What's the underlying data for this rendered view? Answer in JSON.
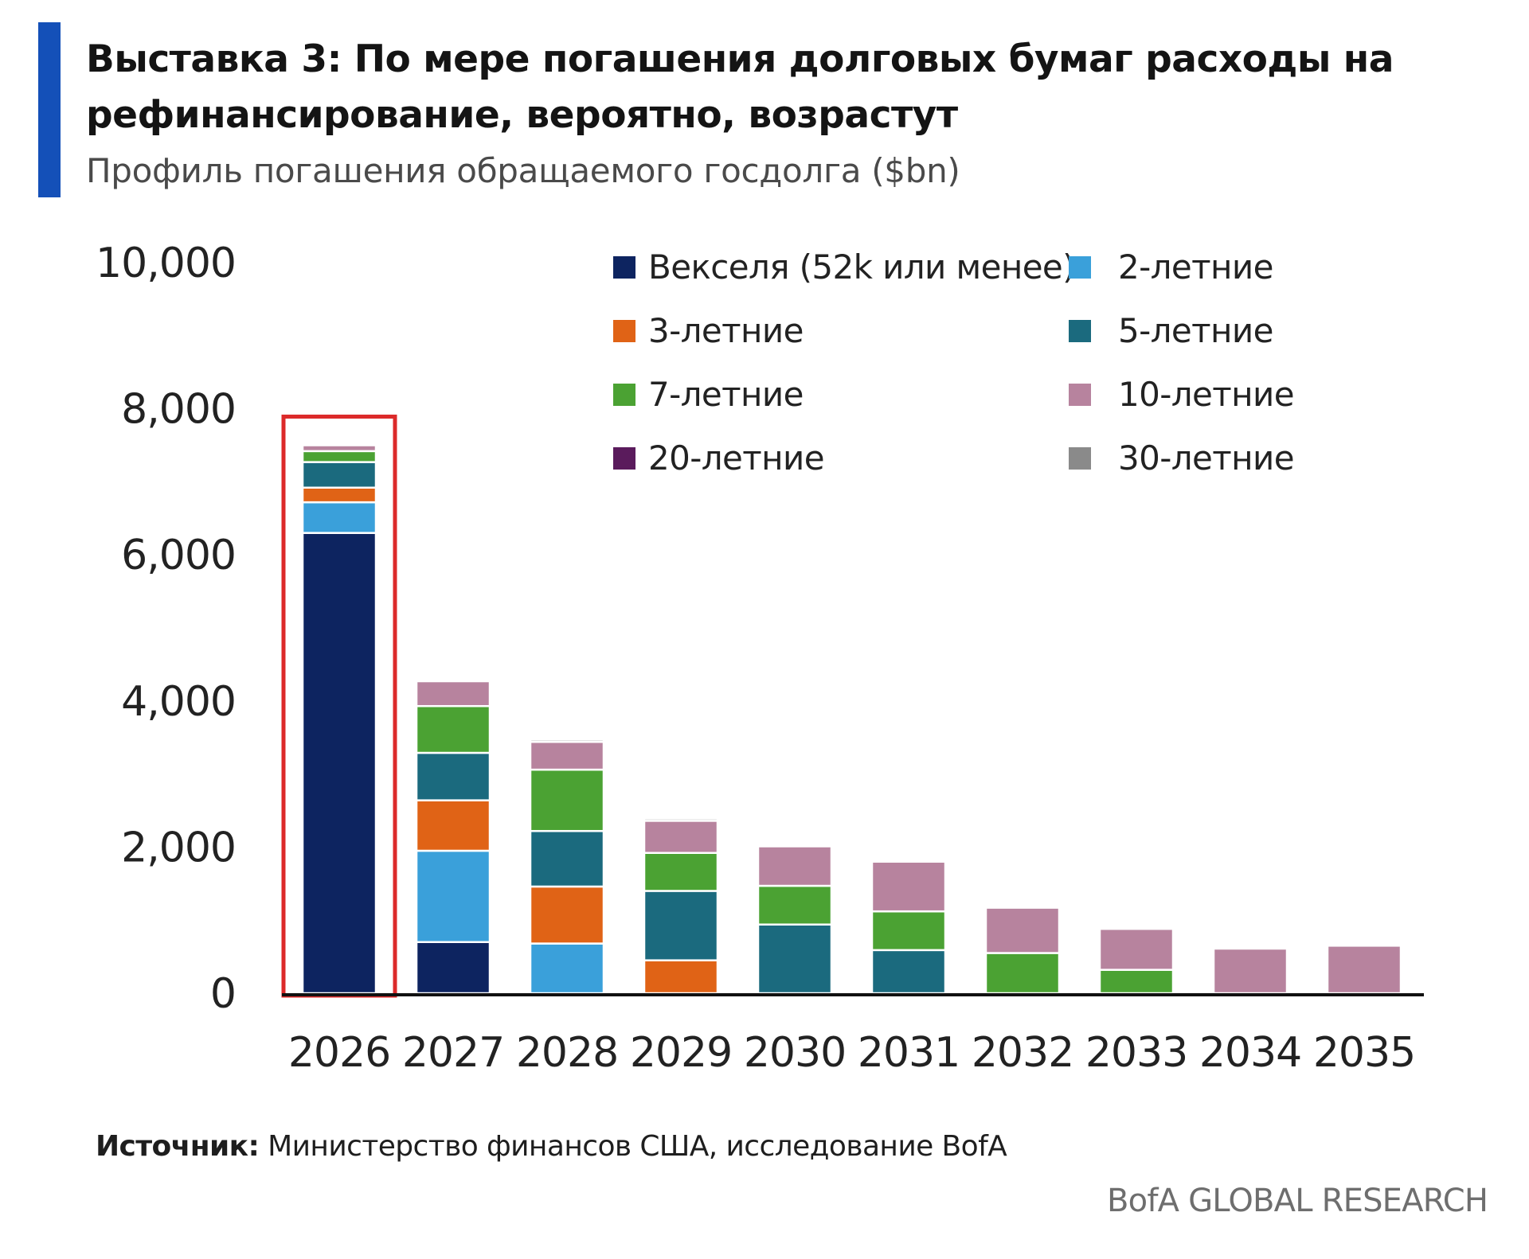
{
  "header": {
    "title": "Выставка 3: По мере погашения долговых бумаг расходы на рефинансирование, вероятно, возрастут",
    "subtitle": "Профиль погашения обращаемого госдолга ($bn)"
  },
  "footer": {
    "source_label": "Источник:",
    "source_text": "Министерство финансов США, исследование BofA",
    "brand": "BofA GLOBAL RESEARCH"
  },
  "chart_data": {
    "type": "bar",
    "stacked": true,
    "title": "",
    "xlabel": "",
    "ylabel": "",
    "categories": [
      "2026",
      "2027",
      "2028",
      "2029",
      "2030",
      "2031",
      "2032",
      "2033",
      "2034",
      "2035"
    ],
    "ylim": [
      0,
      10000
    ],
    "yticks": [
      0,
      2000,
      4000,
      6000,
      8000,
      10000
    ],
    "ytick_labels": [
      "0",
      "2,000",
      "4,000",
      "6,000",
      "8,000",
      "10,000"
    ],
    "grid": false,
    "legend_position": "top-right",
    "highlighted_category": "2026",
    "highlight_color": "#dc2a2a",
    "series": [
      {
        "name": "Векселя (52k или менее)",
        "color": "#0d2460",
        "values": [
          6300,
          700,
          0,
          0,
          0,
          0,
          0,
          0,
          0,
          0
        ]
      },
      {
        "name": "2-летние",
        "color": "#3aa0da",
        "values": [
          420,
          1250,
          680,
          0,
          0,
          0,
          0,
          0,
          0,
          0
        ]
      },
      {
        "name": "3-летние",
        "color": "#e06316",
        "values": [
          200,
          690,
          780,
          450,
          0,
          0,
          0,
          0,
          0,
          0
        ]
      },
      {
        "name": "5-летние",
        "color": "#1b6a7e",
        "values": [
          350,
          650,
          760,
          950,
          940,
          590,
          0,
          0,
          0,
          0
        ]
      },
      {
        "name": "7-летние",
        "color": "#4ba233",
        "values": [
          150,
          640,
          840,
          520,
          530,
          530,
          550,
          320,
          0,
          0
        ]
      },
      {
        "name": "10-летние",
        "color": "#b7839e",
        "values": [
          80,
          340,
          380,
          440,
          540,
          680,
          620,
          560,
          610,
          650
        ]
      },
      {
        "name": "20-летние",
        "color": "#5a1b5c",
        "values": [
          0,
          0,
          0,
          0,
          0,
          0,
          0,
          0,
          0,
          0
        ]
      },
      {
        "name": "30-летние",
        "color": "#8a8a8a",
        "values": [
          0,
          0,
          30,
          30,
          0,
          0,
          0,
          0,
          0,
          0
        ]
      }
    ]
  }
}
